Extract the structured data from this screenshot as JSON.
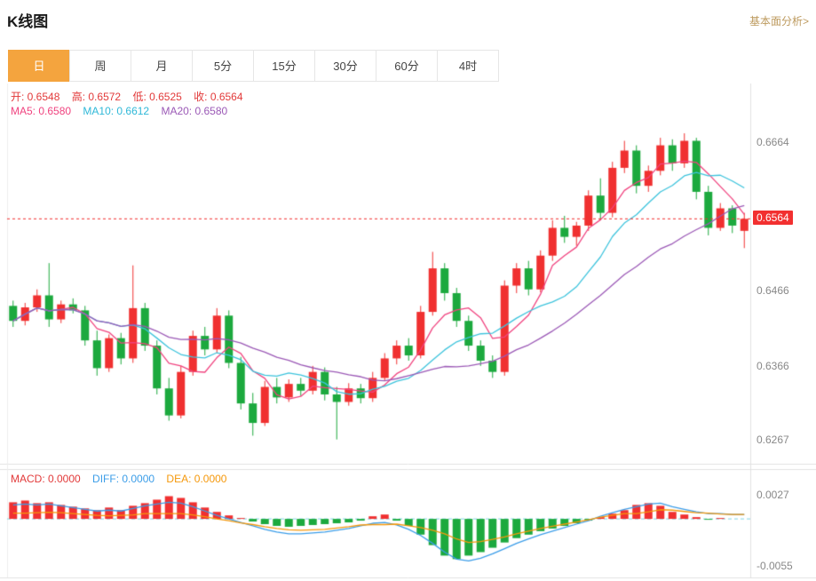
{
  "header": {
    "title": "K线图",
    "link": "基本面分析>"
  },
  "tabs": {
    "items": [
      "日",
      "周",
      "月",
      "5分",
      "15分",
      "30分",
      "60分",
      "4时"
    ],
    "active_index": 0
  },
  "legend": {
    "ohlc": [
      "开: 0.6548",
      "高: 0.6572",
      "低: 0.6525",
      "收: 0.6564"
    ],
    "ma": [
      "MA5: 0.6580",
      "MA10: 0.6612",
      "MA20: 0.6580"
    ],
    "macd": [
      "MACD: 0.0000",
      "DIFF: 0.0000",
      "DEA: 0.0000"
    ]
  },
  "colors": {
    "up": "#f03030",
    "down": "#1ca93e",
    "ma5": "#f0437f",
    "ma10": "#3cc3dc",
    "ma20": "#9b59b6",
    "diff": "#3b9de8",
    "dea": "#f5980b",
    "price_line": "#f23030",
    "zero_line": "#7ed4e4",
    "border": "#e2e2e2",
    "active_tab": "#f4a43e",
    "link": "#bd9a5e"
  },
  "chart_data": {
    "type": "candlestick+macd",
    "title": "K线图",
    "grid": false,
    "legend_position": "top-left",
    "main": {
      "current_price": 0.6564,
      "range": [
        0.624,
        0.6742
      ],
      "axis_labels": [
        {
          "label": "0.6664",
          "value": 0.6664
        },
        {
          "label": "0.6564",
          "value": 0.6564,
          "highlight": true
        },
        {
          "label": "0.6466",
          "value": 0.6466
        },
        {
          "label": "0.6366",
          "value": 0.6366
        },
        {
          "label": "0.6267",
          "value": 0.6267
        }
      ],
      "ma_periods": [
        5,
        10,
        20
      ],
      "candles": [
        [
          0.6448,
          0.6455,
          0.642,
          0.6428
        ],
        [
          0.6428,
          0.6452,
          0.6422,
          0.6446
        ],
        [
          0.6446,
          0.647,
          0.644,
          0.6462
        ],
        [
          0.6462,
          0.6505,
          0.642,
          0.643
        ],
        [
          0.643,
          0.6455,
          0.6425,
          0.645
        ],
        [
          0.645,
          0.6458,
          0.6438,
          0.6442
        ],
        [
          0.6442,
          0.6448,
          0.6395,
          0.6402
        ],
        [
          0.6402,
          0.6415,
          0.6355,
          0.6365
        ],
        [
          0.6365,
          0.641,
          0.636,
          0.6405
        ],
        [
          0.6405,
          0.6412,
          0.637,
          0.6378
        ],
        [
          0.6378,
          0.6502,
          0.6372,
          0.6445
        ],
        [
          0.6445,
          0.6452,
          0.6388,
          0.6395
        ],
        [
          0.6395,
          0.6402,
          0.633,
          0.6338
        ],
        [
          0.6338,
          0.6352,
          0.6295,
          0.6302
        ],
        [
          0.6302,
          0.6368,
          0.6298,
          0.636
        ],
        [
          0.636,
          0.6415,
          0.6355,
          0.6408
        ],
        [
          0.6408,
          0.642,
          0.6382,
          0.639
        ],
        [
          0.639,
          0.6445,
          0.6385,
          0.6435
        ],
        [
          0.6435,
          0.6442,
          0.6365,
          0.6372
        ],
        [
          0.6372,
          0.638,
          0.631,
          0.6318
        ],
        [
          0.6318,
          0.6332,
          0.6275,
          0.6292
        ],
        [
          0.6292,
          0.6348,
          0.6288,
          0.634
        ],
        [
          0.634,
          0.6352,
          0.6318,
          0.6326
        ],
        [
          0.6326,
          0.635,
          0.632,
          0.6344
        ],
        [
          0.6344,
          0.6352,
          0.6328,
          0.6335
        ],
        [
          0.6335,
          0.6368,
          0.633,
          0.636
        ],
        [
          0.636,
          0.6366,
          0.6322,
          0.633
        ],
        [
          0.633,
          0.634,
          0.627,
          0.632
        ],
        [
          0.632,
          0.6345,
          0.6315,
          0.6338
        ],
        [
          0.6338,
          0.6344,
          0.6318,
          0.6325
        ],
        [
          0.6325,
          0.636,
          0.632,
          0.6352
        ],
        [
          0.6352,
          0.6385,
          0.6348,
          0.6378
        ],
        [
          0.6378,
          0.6402,
          0.637,
          0.6395
        ],
        [
          0.6395,
          0.6405,
          0.6375,
          0.6382
        ],
        [
          0.6382,
          0.6448,
          0.6378,
          0.644
        ],
        [
          0.644,
          0.652,
          0.6435,
          0.6498
        ],
        [
          0.6498,
          0.6505,
          0.6455,
          0.6465
        ],
        [
          0.6465,
          0.6472,
          0.642,
          0.6428
        ],
        [
          0.6428,
          0.6435,
          0.6388,
          0.6395
        ],
        [
          0.6395,
          0.6402,
          0.6368,
          0.6375
        ],
        [
          0.6375,
          0.6382,
          0.6352,
          0.636
        ],
        [
          0.636,
          0.6482,
          0.6355,
          0.6475
        ],
        [
          0.6475,
          0.6505,
          0.6465,
          0.6498
        ],
        [
          0.6498,
          0.6508,
          0.6462,
          0.647
        ],
        [
          0.647,
          0.6522,
          0.6466,
          0.6515
        ],
        [
          0.6515,
          0.6562,
          0.6508,
          0.6552
        ],
        [
          0.6552,
          0.6568,
          0.6532,
          0.654
        ],
        [
          0.654,
          0.656,
          0.6528,
          0.6555
        ],
        [
          0.6555,
          0.6602,
          0.6548,
          0.6595
        ],
        [
          0.6595,
          0.6618,
          0.6562,
          0.6572
        ],
        [
          0.6572,
          0.664,
          0.6566,
          0.6632
        ],
        [
          0.6632,
          0.6668,
          0.6625,
          0.6655
        ],
        [
          0.6655,
          0.6662,
          0.6598,
          0.6608
        ],
        [
          0.6608,
          0.6635,
          0.66,
          0.6628
        ],
        [
          0.6628,
          0.6672,
          0.6622,
          0.6662
        ],
        [
          0.6662,
          0.667,
          0.6628,
          0.6638
        ],
        [
          0.6638,
          0.6678,
          0.6632,
          0.6668
        ],
        [
          0.6668,
          0.6672,
          0.659,
          0.66
        ],
        [
          0.66,
          0.6608,
          0.6542,
          0.6552
        ],
        [
          0.6552,
          0.6585,
          0.6548,
          0.6578
        ],
        [
          0.6578,
          0.6582,
          0.6545,
          0.6555
        ],
        [
          0.6548,
          0.6572,
          0.6525,
          0.6564
        ]
      ]
    },
    "macd": {
      "range": [
        -0.0067,
        0.0055
      ],
      "axis_labels": [
        {
          "label": "0.0027",
          "value": 0.0027
        },
        {
          "label": "-0.0055",
          "value": -0.0055
        }
      ],
      "histogram": [
        0.0019,
        0.0021,
        0.0018,
        0.0019,
        0.0016,
        0.0014,
        0.0012,
        0.001,
        0.0013,
        0.001,
        0.0015,
        0.0018,
        0.0022,
        0.0026,
        0.0024,
        0.0019,
        0.0013,
        0.0008,
        0.0004,
        0.0001,
        -0.0003,
        -0.0006,
        -0.0008,
        -0.0009,
        -0.0008,
        -0.0007,
        -0.0006,
        -0.0005,
        -0.0004,
        -0.0002,
        0.0003,
        0.0005,
        -0.0002,
        -0.0008,
        -0.0018,
        -0.003,
        -0.0042,
        -0.0046,
        -0.0042,
        -0.0038,
        -0.0033,
        -0.0027,
        -0.0022,
        -0.0018,
        -0.0014,
        -0.0011,
        -0.0008,
        -0.0005,
        -0.0002,
        0.0002,
        0.0006,
        0.001,
        0.0016,
        0.0018,
        0.0015,
        0.0008,
        0.0005,
        0.0002,
        -0.0001,
        0.0001,
        0.0,
        0.0
      ],
      "diff": [
        0.0016,
        0.0017,
        0.0016,
        0.0017,
        0.0015,
        0.0013,
        0.0011,
        0.0009,
        0.001,
        0.0009,
        0.0012,
        0.0015,
        0.0017,
        0.0019,
        0.0018,
        0.0014,
        0.0009,
        0.0004,
        0.0,
        -0.0004,
        -0.0008,
        -0.0012,
        -0.0015,
        -0.0017,
        -0.0017,
        -0.0016,
        -0.0015,
        -0.0013,
        -0.0011,
        -0.0008,
        -0.0005,
        -0.0004,
        -0.0007,
        -0.0012,
        -0.0019,
        -0.0028,
        -0.0038,
        -0.0046,
        -0.0048,
        -0.0045,
        -0.004,
        -0.0034,
        -0.0028,
        -0.0023,
        -0.0018,
        -0.0014,
        -0.001,
        -0.0006,
        -0.0002,
        0.0003,
        0.0007,
        0.0011,
        0.0014,
        0.0017,
        0.0018,
        0.0014,
        0.0011,
        0.0008,
        0.0006,
        0.0006,
        0.0005,
        0.0005
      ]
    }
  }
}
